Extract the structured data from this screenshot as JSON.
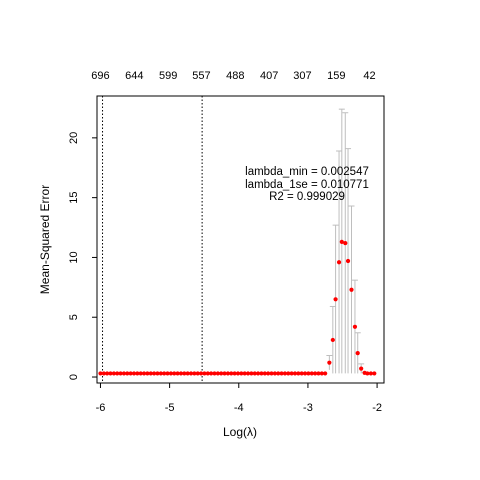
{
  "chart_data": {
    "type": "scatter",
    "xlabel": "Log(λ)",
    "ylabel": "Mean-Squared Error",
    "xlim": [
      -6.05,
      -1.9
    ],
    "ylim": [
      -0.5,
      23.5
    ],
    "x_ticks": [
      -6,
      -5,
      -4,
      -3,
      -2
    ],
    "y_ticks": [
      0,
      5,
      10,
      15,
      20
    ],
    "top_ticks": [
      {
        "x": -6.0,
        "label": "696"
      },
      {
        "x": -5.51,
        "label": "644"
      },
      {
        "x": -5.02,
        "label": "599"
      },
      {
        "x": -4.54,
        "label": "557"
      },
      {
        "x": -4.05,
        "label": "488"
      },
      {
        "x": -3.56,
        "label": "407"
      },
      {
        "x": -3.08,
        "label": "307"
      },
      {
        "x": -2.59,
        "label": "159"
      },
      {
        "x": -2.11,
        "label": "42"
      }
    ],
    "vlines": [
      {
        "name": "lambda_min",
        "x": -5.97
      },
      {
        "name": "lambda_1se",
        "x": -4.53
      }
    ],
    "annotations": [
      "lambda_min = 0.002547",
      "lambda_1se = 0.010771",
      "R2 = 0.999029"
    ],
    "flat_segment": {
      "x_start": -6.0,
      "x_end": -2.74,
      "y": 0.3
    },
    "points": [
      {
        "x": -2.69,
        "y": 1.2,
        "lo": 0.6,
        "hi": 1.8
      },
      {
        "x": -2.64,
        "y": 3.1,
        "lo": 0.3,
        "hi": 5.9
      },
      {
        "x": -2.6,
        "y": 6.5,
        "lo": 0.3,
        "hi": 12.7
      },
      {
        "x": -2.55,
        "y": 9.6,
        "lo": 0.3,
        "hi": 18.9
      },
      {
        "x": -2.51,
        "y": 11.3,
        "lo": 0.3,
        "hi": 22.4
      },
      {
        "x": -2.46,
        "y": 11.2,
        "lo": 0.3,
        "hi": 22.1
      },
      {
        "x": -2.42,
        "y": 9.7,
        "lo": 0.3,
        "hi": 19.1
      },
      {
        "x": -2.37,
        "y": 7.3,
        "lo": 0.3,
        "hi": 14.3
      },
      {
        "x": -2.32,
        "y": 4.2,
        "lo": 0.3,
        "hi": 8.1
      },
      {
        "x": -2.28,
        "y": 2.0,
        "lo": 0.3,
        "hi": 3.7
      },
      {
        "x": -2.23,
        "y": 0.7,
        "lo": 0.3,
        "hi": 1.1
      },
      {
        "x": -2.18,
        "y": 0.35,
        "lo": 0.3,
        "hi": 0.4
      },
      {
        "x": -2.14,
        "y": 0.3,
        "lo": 0.3,
        "hi": 0.3
      },
      {
        "x": -2.09,
        "y": 0.3,
        "lo": 0.3,
        "hi": 0.3
      },
      {
        "x": -2.04,
        "y": 0.3,
        "lo": 0.3,
        "hi": 0.3
      }
    ],
    "point_color": "#ff0000",
    "errorbar_color": "#bebebe",
    "grid": false
  }
}
